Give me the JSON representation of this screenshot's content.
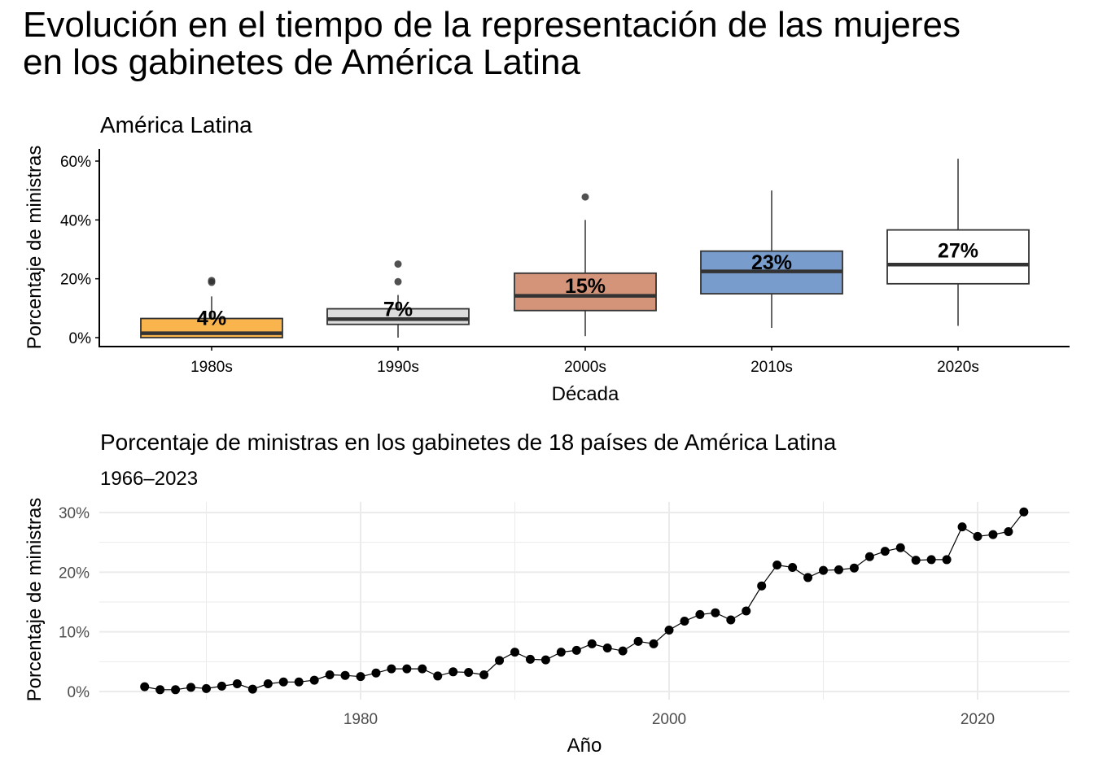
{
  "title_line1": "Evolución en el tiempo de la representación de las mujeres",
  "title_line2": "en los gabinetes de América Latina",
  "chart_data": [
    {
      "type": "boxplot",
      "title": "América Latina",
      "xlabel": "Década",
      "ylabel": "Porcentaje de ministras",
      "ylim": [
        0,
        63
      ],
      "yticks": [
        0,
        20,
        40,
        60
      ],
      "ytick_labels": [
        "0%",
        "20%",
        "40%",
        "60%"
      ],
      "grid": false,
      "categories": [
        "1980s",
        "1990s",
        "2000s",
        "2010s",
        "2020s"
      ],
      "boxes": [
        {
          "category": "1980s",
          "whisker_low": 0,
          "q1": 0,
          "median": 1.5,
          "q3": 6.5,
          "whisker_high": 14,
          "outliers": [
            18.8,
            19.4
          ],
          "mean_label": "4%",
          "mean": 4,
          "fill": "#F9B44E"
        },
        {
          "category": "1990s",
          "whisker_low": 0,
          "q1": 4.5,
          "median": 6.3,
          "q3": 9.8,
          "whisker_high": 14.5,
          "outliers": [
            19,
            25
          ],
          "mean_label": "7%",
          "mean": 7,
          "fill": "#DCDCDC"
        },
        {
          "category": "2000s",
          "whisker_low": 0.5,
          "q1": 9.2,
          "median": 14.2,
          "q3": 21.9,
          "whisker_high": 40,
          "outliers": [
            47.8
          ],
          "mean_label": "15%",
          "mean": 15,
          "fill": "#D49479"
        },
        {
          "category": "2010s",
          "whisker_low": 3.3,
          "q1": 14.9,
          "median": 22.5,
          "q3": 29.4,
          "whisker_high": 50,
          "outliers": [],
          "mean_label": "23%",
          "mean": 23,
          "fill": "#789CCC"
        },
        {
          "category": "2020s",
          "whisker_low": 4,
          "q1": 18.3,
          "median": 24.8,
          "q3": 36.6,
          "whisker_high": 60.8,
          "outliers": [],
          "mean_label": "27%",
          "mean": 27,
          "fill": "#FFFFFF"
        }
      ]
    },
    {
      "type": "line",
      "title": "Porcentaje de ministras en los gabinetes de 18 países de América Latina",
      "subtitle": "1966–2023",
      "xlabel": "Año",
      "ylabel": "Porcentaje de ministras",
      "xlim": [
        1963,
        2026
      ],
      "ylim": [
        -1.5,
        31.5
      ],
      "xticks": [
        1980,
        2000,
        2020
      ],
      "xtick_labels": [
        "1980",
        "2000",
        "2020"
      ],
      "yticks": [
        0,
        10,
        20,
        30
      ],
      "ytick_labels": [
        "0%",
        "10%",
        "20%",
        "30%"
      ],
      "grid": true,
      "legend": "none",
      "series": [
        {
          "name": "Porcentaje de ministras",
          "x": [
            1966,
            1967,
            1968,
            1969,
            1970,
            1971,
            1972,
            1973,
            1974,
            1975,
            1976,
            1977,
            1978,
            1979,
            1980,
            1981,
            1982,
            1983,
            1984,
            1985,
            1986,
            1987,
            1988,
            1989,
            1990,
            1991,
            1992,
            1993,
            1994,
            1995,
            1996,
            1997,
            1998,
            1999,
            2000,
            2001,
            2002,
            2003,
            2004,
            2005,
            2006,
            2007,
            2008,
            2009,
            2010,
            2011,
            2012,
            2013,
            2014,
            2015,
            2016,
            2017,
            2018,
            2019,
            2020,
            2021,
            2022,
            2023
          ],
          "values": [
            0.8,
            0.3,
            0.3,
            0.7,
            0.5,
            0.9,
            1.3,
            0.4,
            1.3,
            1.6,
            1.6,
            1.9,
            2.8,
            2.7,
            2.5,
            3.1,
            3.8,
            3.8,
            3.8,
            2.6,
            3.3,
            3.2,
            2.8,
            5.2,
            6.6,
            5.4,
            5.3,
            6.6,
            6.9,
            8.0,
            7.3,
            6.8,
            8.4,
            8.0,
            10.3,
            11.8,
            12.9,
            13.2,
            12.0,
            13.5,
            17.7,
            21.2,
            20.8,
            19.1,
            20.3,
            20.4,
            20.7,
            22.6,
            23.5,
            24.1,
            22.0,
            22.1,
            22.1,
            27.6,
            26.0,
            26.3,
            26.8,
            30.1
          ]
        }
      ]
    }
  ]
}
